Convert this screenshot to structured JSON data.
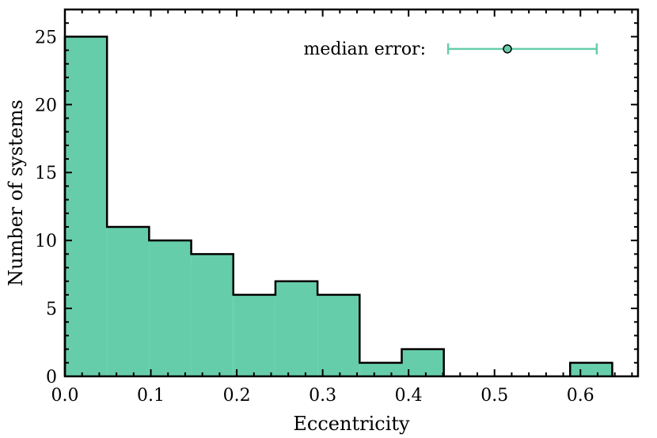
{
  "chart_data": {
    "type": "histogram",
    "xlabel": "Eccentricity",
    "ylabel": "Number of systems",
    "xlim": [
      0.0,
      0.667
    ],
    "ylim": [
      0,
      27
    ],
    "bin_edges": [
      0.0,
      0.049,
      0.098,
      0.147,
      0.196,
      0.245,
      0.294,
      0.343,
      0.392,
      0.441,
      0.49,
      0.539,
      0.588,
      0.637
    ],
    "counts": [
      25,
      11,
      10,
      9,
      6,
      7,
      6,
      1,
      2,
      0,
      0,
      0,
      1
    ],
    "x_ticks": [
      "0.0",
      "0.1",
      "0.2",
      "0.3",
      "0.4",
      "0.5",
      "0.6"
    ],
    "x_tick_values": [
      0.0,
      0.1,
      0.2,
      0.3,
      0.4,
      0.5,
      0.6
    ],
    "y_ticks": [
      "0",
      "5",
      "10",
      "15",
      "20",
      "25"
    ],
    "y_tick_values": [
      0,
      5,
      10,
      15,
      20,
      25
    ],
    "bar_color": "#66cdaa",
    "edge_color": "#000000",
    "grid": false,
    "annotation": {
      "label": "median error:",
      "x": 0.515,
      "y": 24.1,
      "xerr_low": 0.069,
      "xerr_high": 0.104,
      "color": "#66cdaa"
    }
  }
}
